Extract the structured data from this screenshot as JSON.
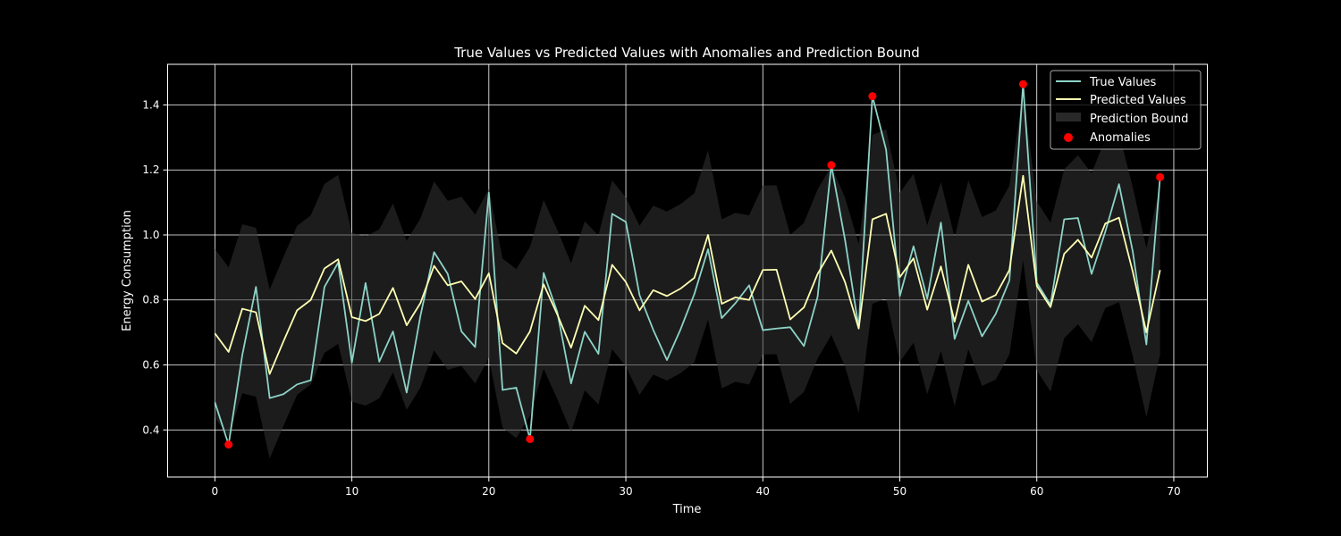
{
  "colors": {
    "background": "#000000",
    "foreground": "#ffffff",
    "true_line": "#8dd3c7",
    "pred_line": "#feffb3",
    "bound_fill": "#333333",
    "anomaly": "#ff0000",
    "grid": "#ffffff"
  },
  "chart_data": {
    "type": "line",
    "title": "True Values vs Predicted Values with Anomalies and Prediction Bound",
    "xlabel": "Time",
    "ylabel": "Energy Consumption",
    "xlim": [
      -3.45,
      72.45
    ],
    "ylim": [
      0.255,
      1.525
    ],
    "xticks": [
      0,
      10,
      20,
      30,
      40,
      50,
      60,
      70
    ],
    "xtick_labels": [
      "0",
      "10",
      "20",
      "30",
      "40",
      "50",
      "60",
      "70"
    ],
    "yticks": [
      0.4,
      0.6,
      0.8,
      1.0,
      1.2,
      1.4
    ],
    "ytick_labels": [
      "0.4",
      "0.6",
      "0.8",
      "1.0",
      "1.2",
      "1.4"
    ],
    "grid": true,
    "legend": {
      "position": "upper right",
      "entries": [
        "True Values",
        "Predicted Values",
        "Prediction Bound",
        "Anomalies"
      ]
    },
    "x": [
      0,
      1,
      2,
      3,
      4,
      5,
      6,
      7,
      8,
      9,
      10,
      11,
      12,
      13,
      14,
      15,
      16,
      17,
      18,
      19,
      20,
      21,
      22,
      23,
      24,
      25,
      26,
      27,
      28,
      29,
      30,
      31,
      32,
      33,
      34,
      35,
      36,
      37,
      38,
      39,
      40,
      41,
      42,
      43,
      44,
      45,
      46,
      47,
      48,
      49,
      50,
      51,
      52,
      53,
      54,
      55,
      56,
      57,
      58,
      59,
      60,
      61,
      62,
      63,
      64,
      65,
      66,
      67,
      68,
      69
    ],
    "series": [
      {
        "name": "True Values",
        "values": [
          0.485,
          0.355,
          0.63,
          0.84,
          0.498,
          0.51,
          0.54,
          0.553,
          0.84,
          0.915,
          0.607,
          0.852,
          0.61,
          0.703,
          0.515,
          0.75,
          0.947,
          0.88,
          0.703,
          0.655,
          1.13,
          0.523,
          0.53,
          0.372,
          0.883,
          0.762,
          0.543,
          0.702,
          0.634,
          1.065,
          1.04,
          0.815,
          0.708,
          0.615,
          0.71,
          0.818,
          0.956,
          0.744,
          0.79,
          0.845,
          0.707,
          0.712,
          0.716,
          0.658,
          0.81,
          1.215,
          0.985,
          0.714,
          1.427,
          1.262,
          0.812,
          0.965,
          0.804,
          1.038,
          0.68,
          0.797,
          0.688,
          0.757,
          0.86,
          1.464,
          0.853,
          0.785,
          1.048,
          1.052,
          0.88,
          1.01,
          1.156,
          0.95,
          0.663,
          1.178
        ]
      },
      {
        "name": "Predicted Values",
        "values": [
          0.697,
          0.64,
          0.773,
          0.762,
          0.572,
          0.672,
          0.768,
          0.8,
          0.897,
          0.925,
          0.747,
          0.735,
          0.757,
          0.837,
          0.722,
          0.79,
          0.905,
          0.845,
          0.857,
          0.803,
          0.882,
          0.667,
          0.635,
          0.703,
          0.848,
          0.755,
          0.653,
          0.782,
          0.738,
          0.908,
          0.855,
          0.768,
          0.83,
          0.812,
          0.835,
          0.868,
          1.0,
          0.788,
          0.808,
          0.8,
          0.892,
          0.893,
          0.74,
          0.777,
          0.88,
          0.952,
          0.855,
          0.712,
          1.048,
          1.065,
          0.87,
          0.928,
          0.77,
          0.903,
          0.733,
          0.908,
          0.795,
          0.815,
          0.892,
          1.182,
          0.843,
          0.778,
          0.942,
          0.985,
          0.93,
          1.035,
          1.053,
          0.888,
          0.7,
          0.892
        ]
      }
    ],
    "prediction_bound": {
      "name": "Prediction Bound",
      "upper": [
        0.957,
        0.9,
        1.033,
        1.022,
        0.832,
        0.932,
        1.028,
        1.06,
        1.157,
        1.185,
        1.007,
        0.995,
        1.017,
        1.097,
        0.982,
        1.05,
        1.165,
        1.105,
        1.117,
        1.063,
        1.142,
        0.927,
        0.895,
        0.963,
        1.108,
        1.015,
        0.913,
        1.042,
        0.998,
        1.168,
        1.115,
        1.028,
        1.09,
        1.072,
        1.095,
        1.128,
        1.26,
        1.048,
        1.068,
        1.06,
        1.152,
        1.153,
        1.0,
        1.037,
        1.14,
        1.212,
        1.115,
        0.972,
        1.308,
        1.325,
        1.13,
        1.188,
        1.03,
        1.163,
        0.993,
        1.168,
        1.055,
        1.075,
        1.152,
        1.442,
        1.103,
        1.038,
        1.202,
        1.245,
        1.19,
        1.295,
        1.313,
        1.148,
        0.96,
        1.152
      ],
      "lower": [
        0.437,
        0.38,
        0.513,
        0.502,
        0.312,
        0.412,
        0.508,
        0.54,
        0.637,
        0.665,
        0.487,
        0.475,
        0.497,
        0.577,
        0.462,
        0.53,
        0.645,
        0.585,
        0.597,
        0.543,
        0.622,
        0.407,
        0.375,
        0.443,
        0.588,
        0.495,
        0.393,
        0.522,
        0.478,
        0.648,
        0.595,
        0.508,
        0.57,
        0.552,
        0.575,
        0.608,
        0.74,
        0.528,
        0.548,
        0.54,
        0.632,
        0.633,
        0.48,
        0.517,
        0.62,
        0.692,
        0.595,
        0.452,
        0.788,
        0.805,
        0.61,
        0.668,
        0.51,
        0.643,
        0.473,
        0.648,
        0.535,
        0.555,
        0.632,
        0.922,
        0.583,
        0.518,
        0.682,
        0.725,
        0.67,
        0.775,
        0.793,
        0.628,
        0.44,
        0.632
      ]
    },
    "anomalies": {
      "name": "Anomalies",
      "x": [
        1,
        23,
        45,
        48,
        59,
        69
      ],
      "y": [
        0.355,
        0.372,
        1.215,
        1.427,
        1.464,
        1.178
      ]
    }
  }
}
